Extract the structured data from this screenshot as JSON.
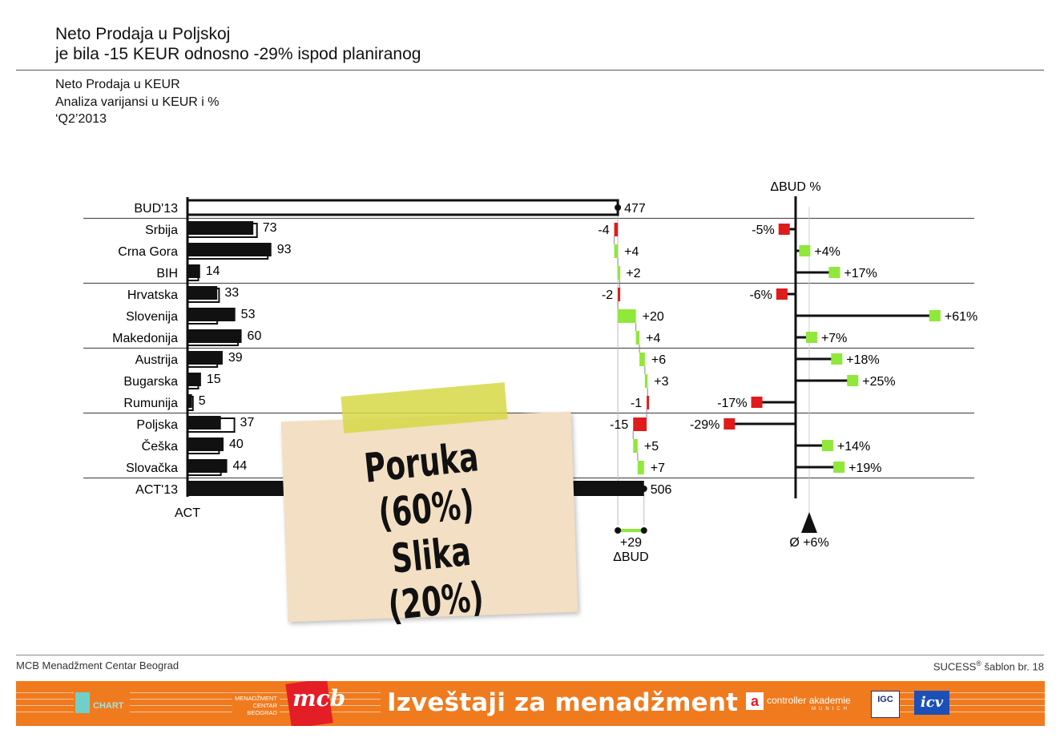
{
  "header": {
    "title_line1": "Neto Prodaja u Poljskoj",
    "title_line2": "je bila -15 KEUR odnosno -29% ispod planiranog",
    "subtitle_line1": "Neto Prodaja u KEUR",
    "subtitle_line2": "Analiza varijansi u KEUR i %",
    "subtitle_line3": "‘Q2’2013"
  },
  "chart_data": {
    "type": "bar",
    "units": "KEUR",
    "colors": {
      "bar": "#111111",
      "positive": "#8fe83a",
      "negative": "#e01b1b"
    },
    "budget_label": "BUD'13",
    "budget_total": 477,
    "actual_label": "ACT'13",
    "actual_total": 506,
    "act_axis_label": "ACT",
    "abs_variance_label": "ΔBUD",
    "abs_variance_total": "+29",
    "pct_variance_label": "ΔBUD %",
    "avg_label": "Ø +6%",
    "avg_pct": 6,
    "groups": [
      3,
      3,
      3,
      3
    ],
    "rows": [
      {
        "name": "Srbija",
        "act": 73,
        "act_text": "73",
        "bud": 77,
        "dabs": -4,
        "dabs_text": "-4",
        "dpct": -5,
        "dpct_text": "-5%"
      },
      {
        "name": "Crna Gora",
        "act": 93,
        "act_text": "93",
        "bud": 89,
        "dabs": 4,
        "dabs_text": "+4",
        "dpct": 4,
        "dpct_text": "+4%"
      },
      {
        "name": "BIH",
        "act": 14,
        "act_text": "14",
        "bud": 12,
        "dabs": 2,
        "dabs_text": "+2",
        "dpct": 17,
        "dpct_text": "+17%"
      },
      {
        "name": "Hrvatska",
        "act": 33,
        "act_text": "33",
        "bud": 35,
        "dabs": -2,
        "dabs_text": "-2",
        "dpct": -6,
        "dpct_text": "-6%"
      },
      {
        "name": "Slovenija",
        "act": 53,
        "act_text": "53",
        "bud": 33,
        "dabs": 20,
        "dabs_text": "+20",
        "dpct": 61,
        "dpct_text": "+61%"
      },
      {
        "name": "Makedonija",
        "act": 60,
        "act_text": "60",
        "bud": 56,
        "dabs": 4,
        "dabs_text": "+4",
        "dpct": 7,
        "dpct_text": "+7%"
      },
      {
        "name": "Austrija",
        "act": 39,
        "act_text": "39",
        "bud": 33,
        "dabs": 6,
        "dabs_text": "+6",
        "dpct": 18,
        "dpct_text": "+18%"
      },
      {
        "name": "Bugarska",
        "act": 15,
        "act_text": "15",
        "bud": 12,
        "dabs": 3,
        "dabs_text": "+3",
        "dpct": 25,
        "dpct_text": "+25%"
      },
      {
        "name": "Rumunija",
        "act": 5,
        "act_text": "5",
        "bud": 6,
        "dabs": -1,
        "dabs_text": "-1",
        "dpct": -17,
        "dpct_text": "-17%"
      },
      {
        "name": "Poljska",
        "act": 37,
        "act_text": "37",
        "bud": 52,
        "dabs": -15,
        "dabs_text": "-15",
        "dpct": -29,
        "dpct_text": "-29%"
      },
      {
        "name": "Češka",
        "act": 40,
        "act_text": "40",
        "bud": 35,
        "dabs": 5,
        "dabs_text": "+5",
        "dpct": 14,
        "dpct_text": "+14%"
      },
      {
        "name": "Slovačka",
        "act": 44,
        "act_text": "44",
        "bud": 37,
        "dabs": 7,
        "dabs_text": "+7",
        "dpct": 19,
        "dpct_text": "+19%"
      }
    ]
  },
  "note": {
    "line1": "Poruka (60%)",
    "line2": "Slika (20%)"
  },
  "footer": {
    "left": "MCB Menadžment Centar Beograd",
    "right_main": "SUCESS",
    "right_sup": "®",
    "right_rest": " šablon br. 18"
  },
  "banner": {
    "title": "Izveštaji za menadžment",
    "logo_hichart": "CHART",
    "logo_mcb_small": [
      "MENADŽMENT",
      "CENTAR",
      "BEOGRAD"
    ],
    "logo_mcb": "mcb",
    "logo_controller_mark": "a",
    "logo_controller": "controller akademie",
    "logo_controller_sub": "MUNICH",
    "logo_igc": "IGC",
    "logo_icv": "icv",
    "color": "#f07a1e"
  }
}
